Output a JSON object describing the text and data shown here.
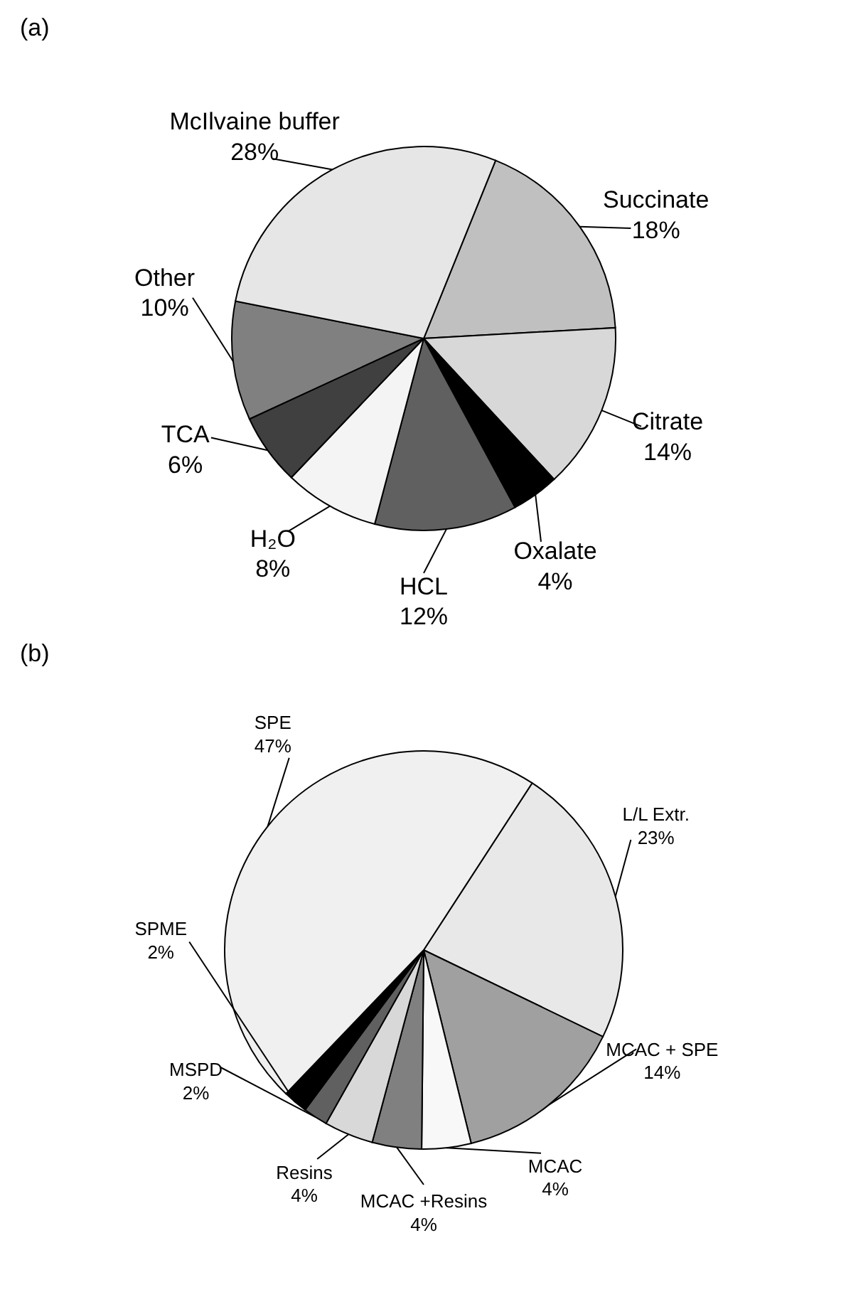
{
  "chart_data": [
    {
      "type": "pie",
      "title": "(a)",
      "categories": [
        "Succinate",
        "Citrate",
        "Oxalate",
        "HCL",
        "H₂O",
        "TCA",
        "Other",
        "McIlvaine buffer"
      ],
      "values": [
        18,
        14,
        4,
        12,
        8,
        6,
        10,
        28
      ],
      "value_labels": [
        "18%",
        "14%",
        "4%",
        "12%",
        "8%",
        "6%",
        "10%",
        "28%"
      ],
      "colors": [
        "#c0c0c0",
        "#d8d8d8",
        "#000000",
        "#606060",
        "#f4f4f4",
        "#404040",
        "#808080",
        "#e6e6e6"
      ]
    },
    {
      "type": "pie",
      "title": "(b)",
      "categories": [
        "L/L Extr.",
        "MCAC + SPE",
        "MCAC",
        "MCAC +Resins",
        "Resins",
        "MSPD",
        "SPME",
        "SPE"
      ],
      "values": [
        23,
        14,
        4,
        4,
        4,
        2,
        2,
        47
      ],
      "value_labels": [
        "23%",
        "14%",
        "4%",
        "4%",
        "4%",
        "2%",
        "2%",
        "47%"
      ],
      "colors": [
        "#e8e8e8",
        "#a0a0a0",
        "#f8f8f8",
        "#808080",
        "#d8d8d8",
        "#606060",
        "#000000",
        "#f0f0f0"
      ]
    }
  ]
}
